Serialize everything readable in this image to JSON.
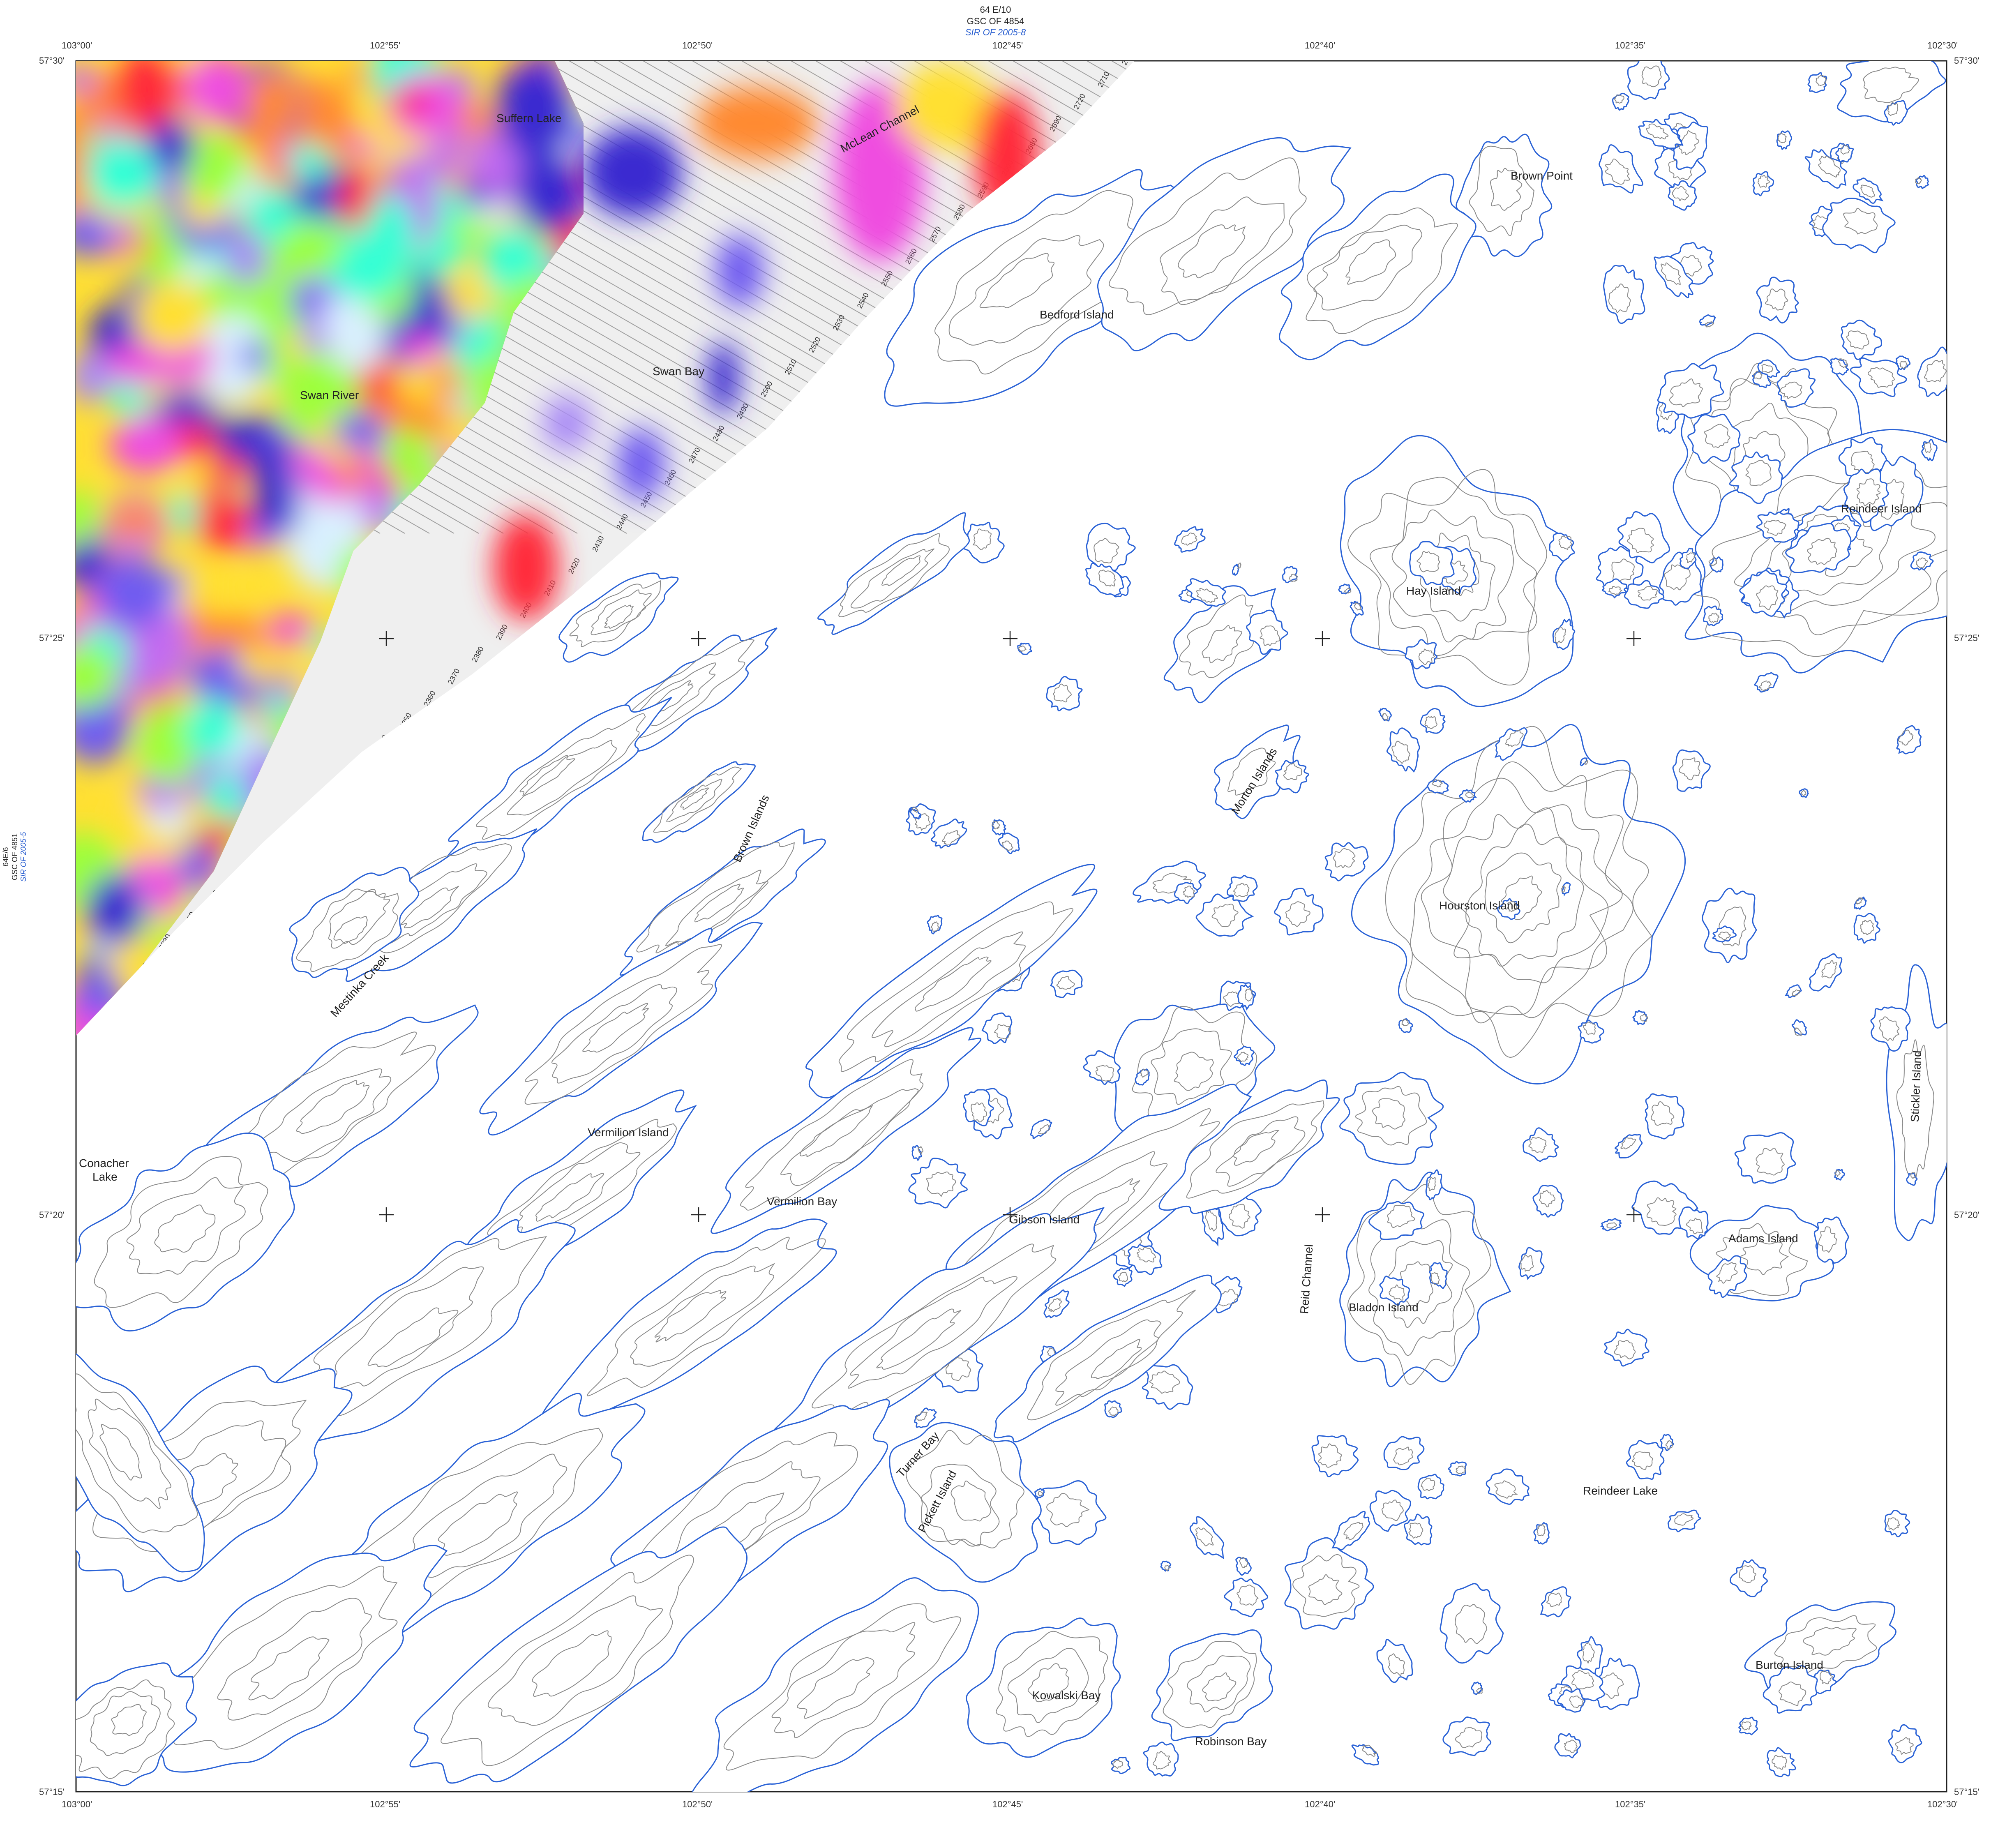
{
  "header": {
    "sheet": "64 E/10",
    "gsc": "GSC OF 4854",
    "sir": "SIR OF 2005-8"
  },
  "left_sheet": {
    "sheet": "64E/6",
    "gsc": "GSC OF 4851",
    "sir": "SIR OF 2005-5"
  },
  "longitude_labels": [
    "103°00'",
    "102°55'",
    "102°50'",
    "102°45'",
    "102°40'",
    "102°35'",
    "102°30'"
  ],
  "latitude_labels": [
    "57°30'",
    "57°25'",
    "57°20'",
    "57°15'"
  ],
  "place_names": {
    "suffern_lake": "Suffern Lake",
    "mclean_channel": "McLean Channel",
    "brown_point": "Brown Point",
    "bedford_island": "Bedford Island",
    "swan_bay": "Swan Bay",
    "swan_river": "Swan River",
    "reindeer_island": "Reindeer Island",
    "hay_island": "Hay Island",
    "morton_islands": "Morton Islands",
    "brown_islands": "Brown Islands",
    "hourston_island": "Hourston Island",
    "mestinka_creek": "Mestinka Creek",
    "stickler_island": "Stickler Island",
    "vermilion_island": "Vermilion Island",
    "conacher": "Conacher",
    "lake": "Lake",
    "vermilion_bay": "Vermilion Bay",
    "gibson_island": "Gibson Island",
    "reid_channel": "Reid Channel",
    "adams_island": "Adams Island",
    "bladon_island": "Bladon Island",
    "turner_bay": "Turner Bay",
    "pickett_island": "Pickett Island",
    "reindeer_lake": "Reindeer Lake",
    "burton_island": "Burton Island",
    "kowalski_bay": "Kowalski Bay",
    "robinson_bay": "Robinson Bay"
  },
  "flight_line_labels": [
    "2700",
    "2710",
    "2720",
    "2690",
    "2680",
    "2600",
    "2590",
    "2580",
    "2570",
    "2560",
    "2550",
    "2540",
    "2530",
    "2520",
    "2510",
    "2500",
    "2490",
    "2480",
    "2470",
    "2460",
    "2450",
    "2440",
    "2430",
    "2420",
    "2410",
    "2400",
    "2390",
    "2380",
    "2370",
    "2360",
    "2350",
    "2340",
    "2330",
    "2310",
    "2300",
    "2290",
    "2280",
    "2270",
    "2260",
    "2250",
    "2230",
    "2220",
    "2210"
  ],
  "colors": {
    "shoreline": "#2a62d6",
    "contour": "#8a8a8a",
    "neatline": "#222222",
    "flight_line": "#999999",
    "survey_background": "#efefef",
    "gradient": [
      "#3a2bd0",
      "#6f5cf0",
      "#a98af5",
      "#c36cf0",
      "#ef4de0",
      "#ff2a3a",
      "#ff8a30",
      "#ffe033",
      "#9cff3a",
      "#33ffd5",
      "#d9f0ff"
    ]
  }
}
